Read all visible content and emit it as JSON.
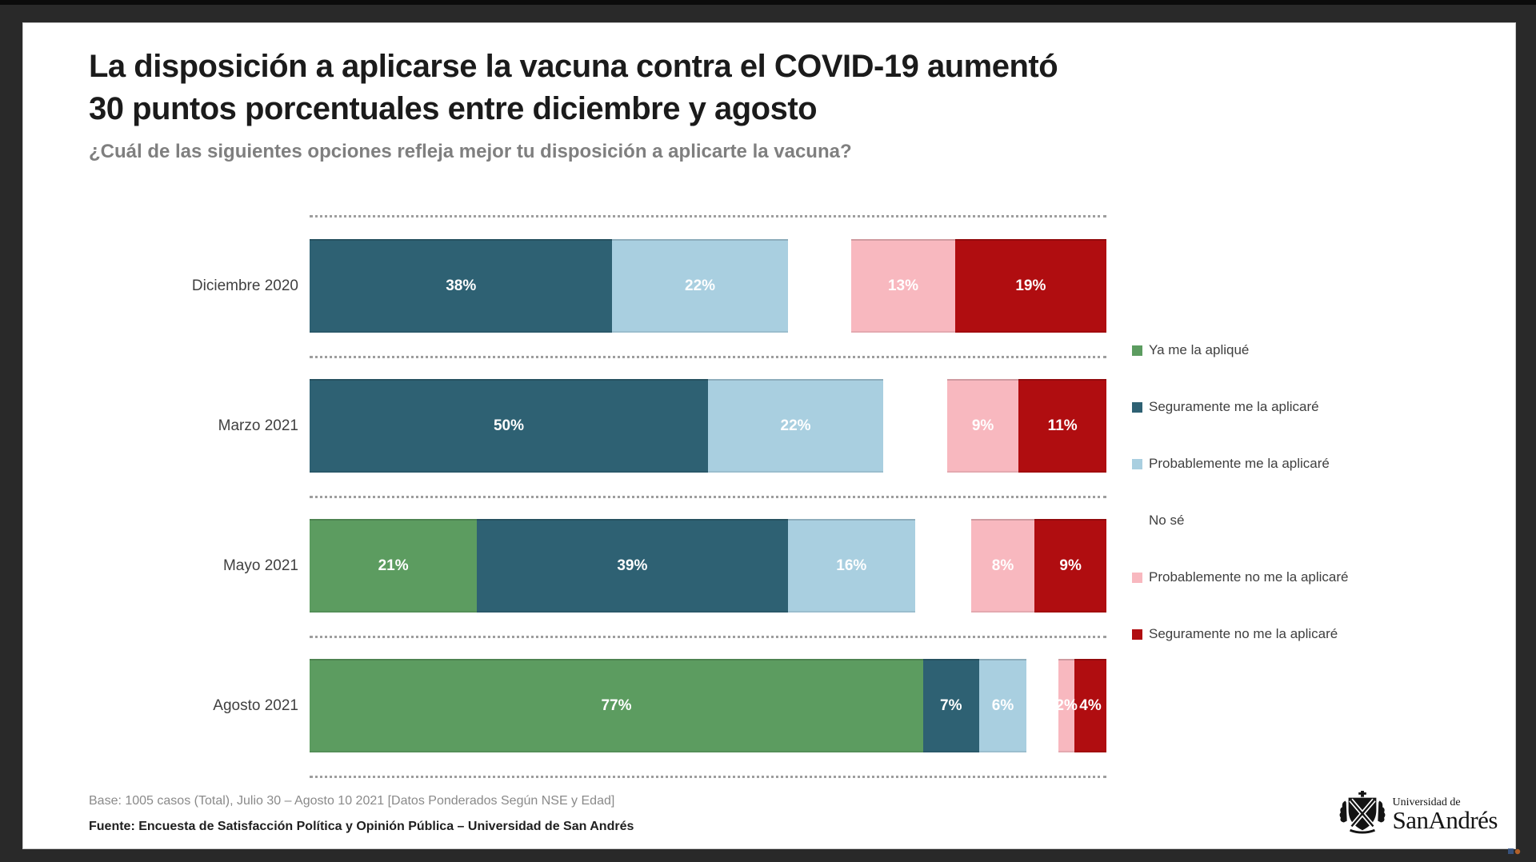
{
  "header": {
    "title_line1": "La disposición a aplicarse la vacuna contra el COVID-19 aumentó",
    "title_line2": "30 puntos porcentuales entre diciembre y agosto",
    "subtitle": "¿Cuál de las siguientes opciones refleja mejor tu disposición a aplicarte la vacuna?"
  },
  "chart_data": {
    "type": "bar",
    "orientation": "horizontal-stacked",
    "xlim": [
      0,
      100
    ],
    "grid": "dotted-row-separators",
    "legend_position": "right",
    "title": "La disposición a aplicarse la vacuna contra el COVID-19 aumentó 30 puntos porcentuales entre diciembre y agosto",
    "subtitle": "¿Cuál de las siguientes opciones refleja mejor tu disposición a aplicarte la vacuna?",
    "categories": [
      "Diciembre 2020",
      "Marzo 2021",
      "Mayo 2021",
      "Agosto 2021"
    ],
    "series": [
      {
        "name": "Ya me la apliqué",
        "color": "#5c9c60",
        "values": [
          0,
          0,
          21,
          77
        ],
        "show_labels": true
      },
      {
        "name": "Seguramente me la aplicaré",
        "color": "#2e6173",
        "values": [
          38,
          50,
          39,
          7
        ],
        "show_labels": true
      },
      {
        "name": "Probablemente me la aplicaré",
        "color": "#a9cfe0",
        "values": [
          22,
          22,
          16,
          6
        ],
        "show_labels": true
      },
      {
        "name": "No sé",
        "color": "#ffffff",
        "values": [
          8,
          8,
          7,
          4
        ],
        "show_labels": false
      },
      {
        "name": "Probablemente no me la aplicaré",
        "color": "#f8b8bf",
        "values": [
          13,
          9,
          8,
          2
        ],
        "show_labels": true
      },
      {
        "name": "Seguramente no me la aplicaré",
        "color": "#b00d10",
        "values": [
          19,
          11,
          9,
          4
        ],
        "show_labels": true
      }
    ],
    "value_label_suffix": "%"
  },
  "footer": {
    "base_note": "Base: 1005 casos (Total), Julio 30 – Agosto 10 2021 [Datos Ponderados Según NSE y Edad]",
    "fuente": "Fuente: Encuesta de Satisfacción Política y Opinión Pública – Universidad de San Andrés"
  },
  "logo": {
    "top": "Universidad de",
    "bottom": "SanAndrés"
  },
  "colors": {
    "frame_background": "#292929",
    "top_strip": "#0b0b0b",
    "slide_background": "#ffffff",
    "title_text": "#1b1b1b",
    "subtitle_text": "#7f7f7f",
    "separator_dots": "#9e9e9e"
  }
}
